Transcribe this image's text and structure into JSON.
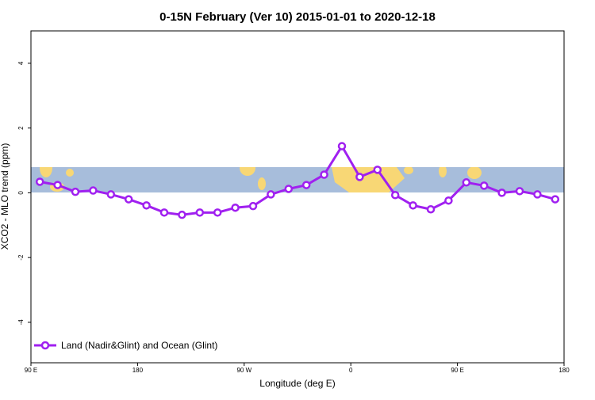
{
  "chart_data": {
    "type": "line",
    "title": "0-15N February (Ver 10)   2015-01-01 to 2020-12-18",
    "x_label": "Longitude (deg E)",
    "y_label": "XCO2 - MLO trend (ppm)",
    "x": [
      97.5,
      112.5,
      127.5,
      142.5,
      157.5,
      172.5,
      187.5,
      202.5,
      217.5,
      232.5,
      247.5,
      262.5,
      277.5,
      292.5,
      307.5,
      322.5,
      337.5,
      352.5,
      367.5,
      382.5,
      397.5,
      412.5,
      427.5,
      442.5,
      457.5,
      472.5,
      487.5,
      502.5,
      517.5,
      532.5
    ],
    "series": [
      {
        "name": "Land (Nadir&Glint) and Ocean (Glint)",
        "color": "#a020f0",
        "values": [
          0.34,
          0.24,
          0.03,
          0.07,
          -0.05,
          -0.2,
          -0.39,
          -0.61,
          -0.68,
          -0.61,
          -0.61,
          -0.46,
          -0.41,
          -0.05,
          0.12,
          0.24,
          0.56,
          1.44,
          0.49,
          0.71,
          -0.07,
          -0.39,
          -0.51,
          -0.24,
          0.32,
          0.22,
          0.0,
          0.05,
          -0.05,
          -0.2
        ]
      }
    ],
    "xlim": [
      90,
      540
    ],
    "xticks": [
      {
        "value": 90,
        "label": "90 E"
      },
      180,
      {
        "value": 270,
        "label": "90 W"
      },
      {
        "value": 360,
        "label": "0"
      },
      {
        "value": 450,
        "label": "90 E"
      },
      {
        "value": 540,
        "label": "180"
      }
    ],
    "ylim": [
      -5.25,
      5
    ],
    "yticks": [
      -4,
      -2,
      0,
      2,
      4
    ],
    "legend": "bottom-left"
  }
}
